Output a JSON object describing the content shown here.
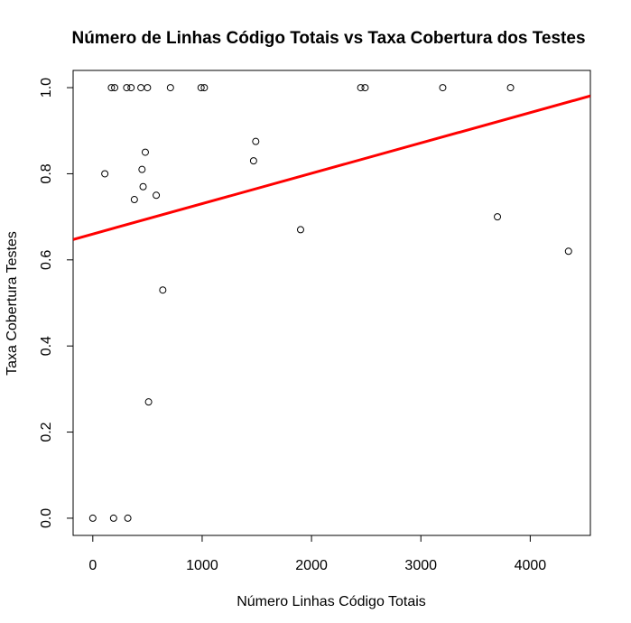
{
  "chart_data": {
    "type": "scatter",
    "title": "Número de Linhas Código Totais vs Taxa Cobertura dos Testes",
    "xlabel": "Número Linhas Código Totais",
    "ylabel": "Taxa Cobertura Testes",
    "xlim": [
      -180,
      4550
    ],
    "ylim": [
      -0.04,
      1.04
    ],
    "x_ticks": [
      "0",
      "1000",
      "2000",
      "3000",
      "4000"
    ],
    "y_ticks": [
      "0.0",
      "0.2",
      "0.4",
      "0.6",
      "0.8",
      "1.0"
    ],
    "x_tick_values": [
      0,
      1000,
      2000,
      3000,
      4000
    ],
    "y_tick_values": [
      0.0,
      0.2,
      0.4,
      0.6,
      0.8,
      1.0
    ],
    "grid": false,
    "points": [
      {
        "x": 0,
        "y": 0.0
      },
      {
        "x": 190,
        "y": 0.0
      },
      {
        "x": 320,
        "y": 0.0
      },
      {
        "x": 110,
        "y": 0.8
      },
      {
        "x": 170,
        "y": 1.0
      },
      {
        "x": 200,
        "y": 1.0
      },
      {
        "x": 310,
        "y": 1.0
      },
      {
        "x": 350,
        "y": 1.0
      },
      {
        "x": 440,
        "y": 1.0
      },
      {
        "x": 500,
        "y": 1.0
      },
      {
        "x": 710,
        "y": 1.0
      },
      {
        "x": 990,
        "y": 1.0
      },
      {
        "x": 1020,
        "y": 1.0
      },
      {
        "x": 2450,
        "y": 1.0
      },
      {
        "x": 2490,
        "y": 1.0
      },
      {
        "x": 3200,
        "y": 1.0
      },
      {
        "x": 3820,
        "y": 1.0
      },
      {
        "x": 380,
        "y": 0.74
      },
      {
        "x": 450,
        "y": 0.81
      },
      {
        "x": 460,
        "y": 0.77
      },
      {
        "x": 480,
        "y": 0.85
      },
      {
        "x": 580,
        "y": 0.75
      },
      {
        "x": 640,
        "y": 0.53
      },
      {
        "x": 510,
        "y": 0.27
      },
      {
        "x": 1470,
        "y": 0.83
      },
      {
        "x": 1490,
        "y": 0.875
      },
      {
        "x": 1900,
        "y": 0.67
      },
      {
        "x": 3700,
        "y": 0.7
      },
      {
        "x": 4350,
        "y": 0.62
      }
    ],
    "regression_line": {
      "intercept": 0.66,
      "slope": 7.05e-05,
      "color": "#ff0000"
    },
    "point_color": "#000000"
  }
}
